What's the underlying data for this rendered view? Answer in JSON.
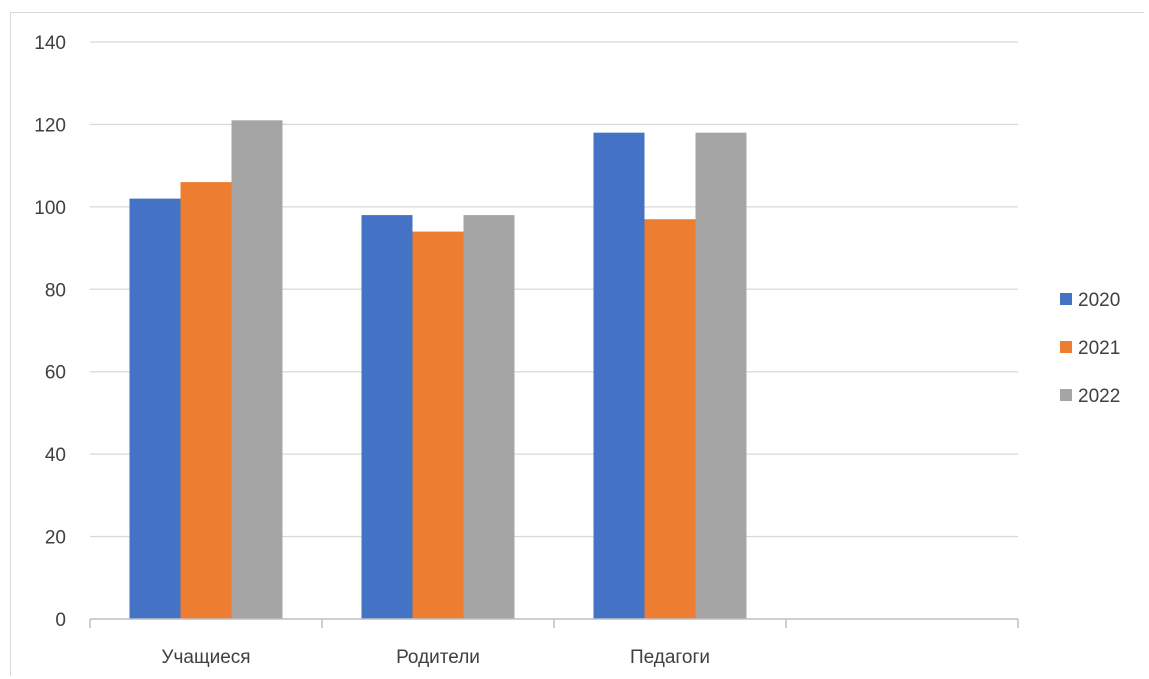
{
  "chart_data": {
    "type": "bar",
    "title": "",
    "xlabel": "",
    "ylabel": "",
    "categories": [
      "Учащиеся",
      "Родители",
      "Педагоги",
      ""
    ],
    "series": [
      {
        "name": "2020",
        "values": [
          102,
          98,
          118,
          null
        ],
        "color": "#4472c4"
      },
      {
        "name": "2021",
        "values": [
          106,
          94,
          97,
          null
        ],
        "color": "#ed7d31"
      },
      {
        "name": "2022",
        "values": [
          121,
          98,
          118,
          null
        ],
        "color": "#a5a5a5"
      }
    ],
    "ylim": [
      0,
      140
    ],
    "yticks": [
      0,
      20,
      40,
      60,
      80,
      100,
      120,
      140
    ],
    "grid": true,
    "legend": "right"
  }
}
